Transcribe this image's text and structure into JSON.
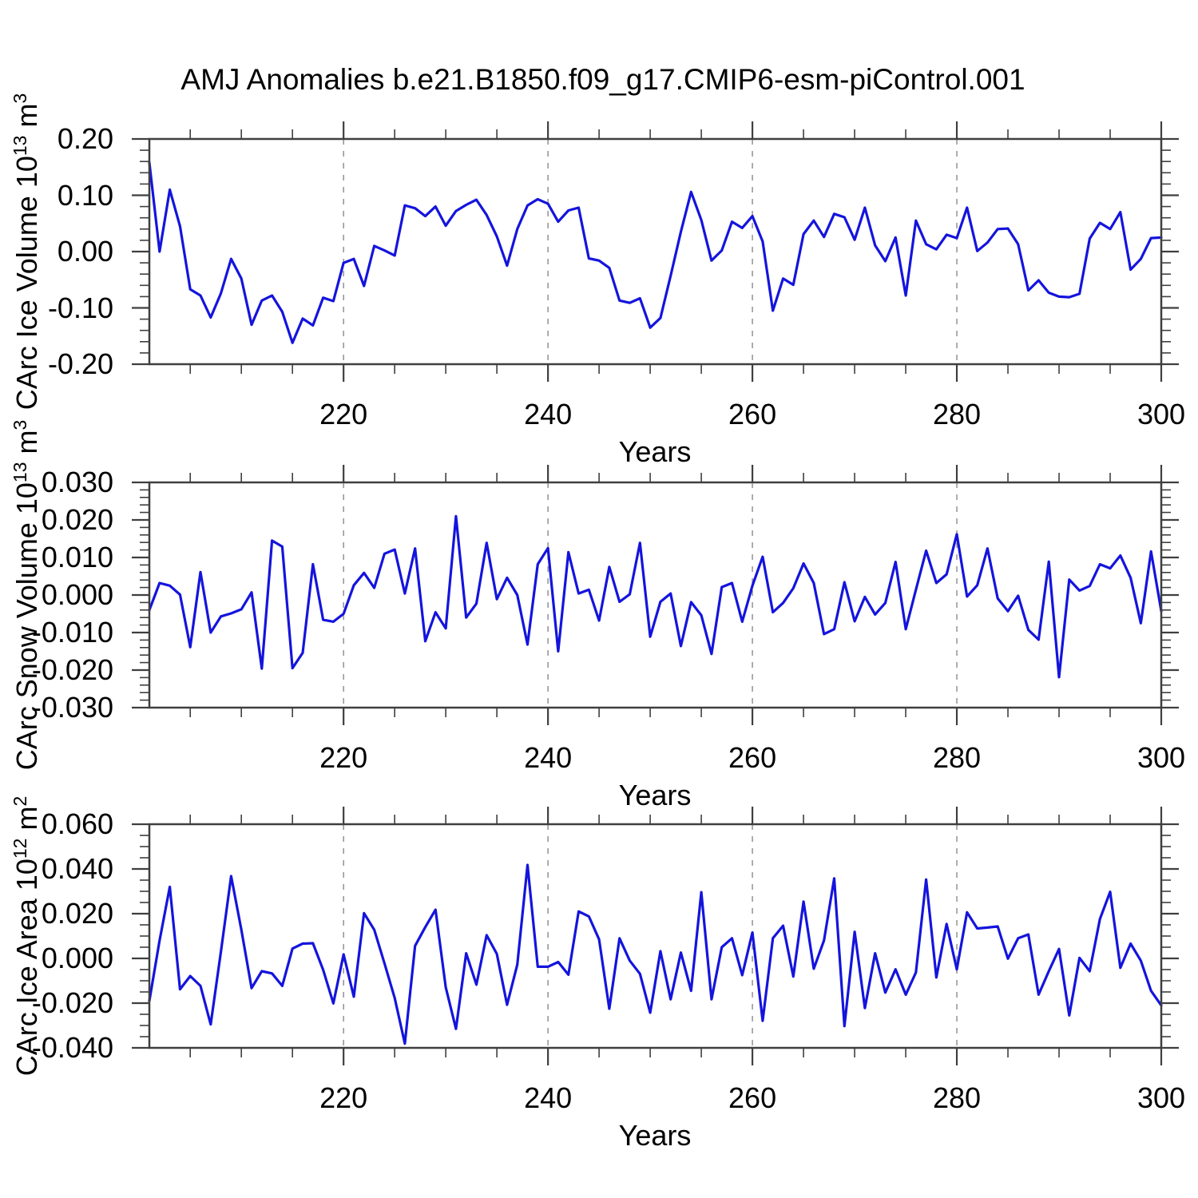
{
  "title": "AMJ Anomalies b.e21.B1850.f09_g17.CMIP6-esm-piControl.001",
  "colors": {
    "line": "#1414dd",
    "grid": "#8a8a8a",
    "axis": "#3f3f3f",
    "text": "#000000",
    "background": "#ffffff"
  },
  "x_axis": {
    "label": "Years",
    "start": 201,
    "end": 300,
    "major_tick_labels": [
      "220",
      "240",
      "260",
      "280",
      "300"
    ],
    "major_tick_values": [
      220,
      240,
      260,
      280,
      300
    ],
    "minor_tick_step": 5,
    "gridlines_at": [
      220,
      240,
      260,
      280
    ],
    "grid_style": "dashed"
  },
  "chart_data": [
    {
      "type": "line",
      "name": "carc-ice-volume",
      "ylabel_parts": [
        "CArc Ice Volume 10",
        "13",
        " m",
        "3"
      ],
      "ylim": [
        -0.2,
        0.2
      ],
      "ytick_labels": [
        "0.20",
        "0.10",
        "0.00",
        "-0.10",
        "-0.20"
      ],
      "ytick_values": [
        0.2,
        0.1,
        0.0,
        -0.1,
        -0.2
      ],
      "yminor_step": 0.02,
      "yminors_per_major": 5,
      "x_start": 201,
      "values": [
        0.158,
        0.0,
        0.11,
        0.045,
        -0.067,
        -0.078,
        -0.117,
        -0.074,
        -0.013,
        -0.048,
        -0.13,
        -0.087,
        -0.078,
        -0.107,
        -0.162,
        -0.119,
        -0.131,
        -0.082,
        -0.088,
        -0.02,
        -0.013,
        -0.061,
        0.01,
        0.002,
        -0.007,
        0.082,
        0.077,
        0.063,
        0.08,
        0.046,
        0.072,
        0.083,
        0.092,
        0.065,
        0.027,
        -0.025,
        0.04,
        0.082,
        0.093,
        0.085,
        0.053,
        0.073,
        0.078,
        -0.012,
        -0.016,
        -0.029,
        -0.087,
        -0.091,
        -0.083,
        -0.135,
        -0.118,
        -0.043,
        0.035,
        0.106,
        0.056,
        -0.016,
        0.002,
        0.053,
        0.042,
        0.063,
        0.018,
        -0.105,
        -0.048,
        -0.059,
        0.031,
        0.055,
        0.026,
        0.067,
        0.061,
        0.021,
        0.078,
        0.011,
        -0.017,
        0.025,
        -0.078,
        0.055,
        0.013,
        0.004,
        0.03,
        0.024,
        0.078,
        0.001,
        0.016,
        0.04,
        0.041,
        0.013,
        -0.069,
        -0.051,
        -0.073,
        -0.08,
        -0.081,
        -0.075,
        0.023,
        0.051,
        0.04,
        0.07,
        -0.032,
        -0.013,
        0.024,
        0.025
      ]
    },
    {
      "type": "line",
      "name": "carc-snow-volume",
      "ylabel_parts": [
        "CArc Snow Volume 10",
        "13",
        " m",
        "3"
      ],
      "ylim": [
        -0.03,
        0.03
      ],
      "ytick_labels": [
        "0.030",
        "0.020",
        "0.010",
        "0.000",
        "-0.010",
        "-0.020",
        "-0.030"
      ],
      "ytick_values": [
        0.03,
        0.02,
        0.01,
        0.0,
        -0.01,
        -0.02,
        -0.03
      ],
      "yminor_step": 0.002,
      "yminors_per_major": 5,
      "x_start": 201,
      "values": [
        -0.004,
        0.0032,
        0.0025,
        0.0001,
        -0.0139,
        0.0061,
        -0.01,
        -0.0057,
        -0.0049,
        -0.0038,
        0.0007,
        -0.0196,
        0.0145,
        0.0129,
        -0.0195,
        -0.0154,
        0.0082,
        -0.0066,
        -0.0071,
        -0.005,
        0.0026,
        0.0059,
        0.0019,
        0.011,
        0.0121,
        0.0004,
        0.0124,
        -0.0123,
        -0.0046,
        -0.0089,
        0.021,
        -0.006,
        -0.0023,
        0.0139,
        -0.0011,
        0.0046,
        0.0,
        -0.0132,
        0.0082,
        0.0125,
        -0.015,
        0.0114,
        0.0004,
        0.0014,
        -0.0068,
        0.0075,
        -0.0018,
        0.0002,
        0.0139,
        -0.0111,
        -0.0018,
        0.0004,
        -0.0136,
        -0.0019,
        -0.0054,
        -0.0157,
        0.0021,
        0.0032,
        -0.0071,
        0.0025,
        0.0102,
        -0.0046,
        -0.0021,
        0.0018,
        0.0084,
        0.0032,
        -0.0104,
        -0.0091,
        0.0034,
        -0.007,
        -0.0005,
        -0.0052,
        -0.0021,
        0.0088,
        -0.0091,
        0.0014,
        0.0118,
        0.0032,
        0.0055,
        0.0162,
        -0.0004,
        0.0026,
        0.0124,
        -0.0009,
        -0.0043,
        -0.0002,
        -0.0093,
        -0.0119,
        0.0089,
        -0.0219,
        0.0041,
        0.0012,
        0.0024,
        0.0082,
        0.0071,
        0.0105,
        0.0046,
        -0.0075,
        0.0116,
        -0.0043
      ]
    },
    {
      "type": "line",
      "name": "carc-ice-area",
      "ylabel_parts": [
        "CArc Ice Area 10",
        "12",
        " m",
        "2"
      ],
      "ylim": [
        -0.04,
        0.06
      ],
      "ytick_labels": [
        "0.060",
        "0.040",
        "0.020",
        "0.000",
        "-0.020",
        "-0.040"
      ],
      "ytick_values": [
        0.06,
        0.04,
        0.02,
        0.0,
        -0.02,
        -0.04
      ],
      "yminor_step": 0.005,
      "yminors_per_major": 4,
      "x_start": 201,
      "values": [
        -0.019,
        0.008,
        0.032,
        -0.0138,
        -0.0079,
        -0.0123,
        -0.0295,
        0.003,
        0.0368,
        0.0128,
        -0.0133,
        -0.0057,
        -0.0067,
        -0.0123,
        0.0044,
        0.0066,
        0.0068,
        -0.0051,
        -0.0201,
        0.0018,
        -0.0171,
        0.0202,
        0.0128,
        -0.0022,
        -0.0177,
        -0.0381,
        0.0056,
        0.014,
        0.0218,
        -0.0129,
        -0.0315,
        0.0023,
        -0.0117,
        0.0104,
        0.002,
        -0.0207,
        -0.0028,
        0.0418,
        -0.0037,
        -0.0037,
        -0.0016,
        -0.0073,
        0.021,
        0.0188,
        0.0085,
        -0.0225,
        0.009,
        -0.001,
        -0.0069,
        -0.0243,
        0.0032,
        -0.0183,
        0.0026,
        -0.0145,
        0.0296,
        -0.0183,
        0.005,
        0.009,
        -0.0075,
        0.0116,
        -0.0279,
        0.009,
        0.0146,
        -0.0081,
        0.0254,
        -0.0046,
        0.008,
        0.0358,
        -0.0303,
        0.0119,
        -0.0222,
        0.0023,
        -0.0153,
        -0.0049,
        -0.0162,
        -0.0063,
        0.0353,
        -0.0085,
        0.0154,
        -0.0049,
        0.0206,
        0.0134,
        0.0138,
        0.0143,
        -0.0001,
        0.009,
        0.0107,
        -0.0162,
        -0.0057,
        0.0042,
        -0.0255,
        0.0002,
        -0.0057,
        0.0176,
        0.0298,
        -0.0042,
        0.0066,
        -0.001,
        -0.0145,
        -0.021
      ]
    }
  ]
}
